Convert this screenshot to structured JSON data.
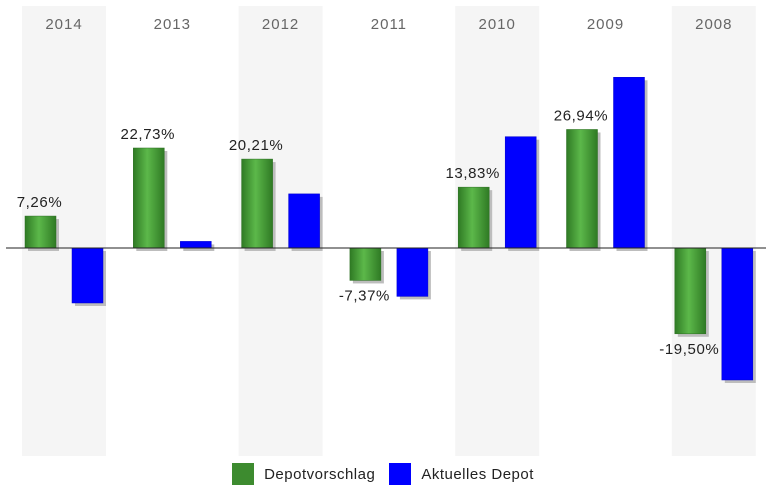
{
  "chart_data": {
    "type": "bar",
    "categories": [
      "2014",
      "2013",
      "2012",
      "2011",
      "2010",
      "2009",
      "2008"
    ],
    "series": [
      {
        "name": "Depotvorschlag",
        "color": "#3d8b2f",
        "values": [
          7.26,
          22.73,
          20.21,
          -7.37,
          13.83,
          26.94,
          -19.5
        ],
        "labels": [
          "7,26%",
          "22,73%",
          "20,21%",
          "-7,37%",
          "13,83%",
          "26,94%",
          "-19,50%"
        ]
      },
      {
        "name": "Aktuelles Depot",
        "color": "#0000ff",
        "values": [
          -12.5,
          1.5,
          12.3,
          -11.0,
          25.3,
          38.8,
          -30.0
        ]
      }
    ],
    "ylim": [
      -47,
      55
    ],
    "grid": false,
    "category_bands": "alternating",
    "legend_position": "bottom"
  },
  "legend": {
    "items": [
      {
        "label": "Depotvorschlag",
        "color": "#3d8b2f"
      },
      {
        "label": "Aktuelles Depot",
        "color": "#0000ff"
      }
    ]
  }
}
